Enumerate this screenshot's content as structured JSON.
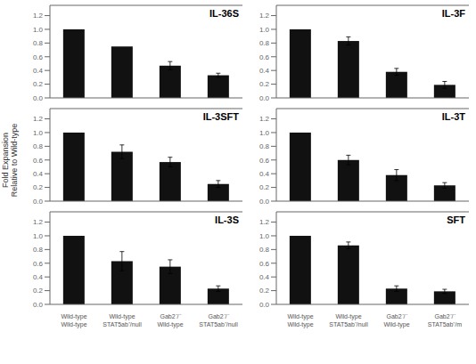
{
  "ylabel": "Fold Expansion\nRelative to Wild-type",
  "chart_data": [
    {
      "type": "bar",
      "title": "IL-36S",
      "categories": [
        null,
        null,
        null,
        null
      ],
      "values": [
        1.0,
        0.75,
        0.47,
        0.33
      ],
      "errors": [
        0.0,
        0.0,
        0.06,
        0.03
      ],
      "color": "#111111",
      "ylim": [
        0,
        1.35
      ],
      "yticks": [
        {
          "value": 0,
          "label": "0.0"
        },
        0.2,
        0.4,
        0.6,
        0.8,
        {
          "value": 1,
          "label": "1.0"
        },
        1.2
      ],
      "tick_labels": "y"
    },
    {
      "type": "bar",
      "title": "IL-3F",
      "categories": [
        null,
        null,
        null,
        null
      ],
      "values": [
        1.0,
        0.83,
        0.38,
        0.19
      ],
      "errors": [
        0.0,
        0.06,
        0.05,
        0.05
      ],
      "color": "#111111",
      "ylim": [
        0,
        1.35
      ],
      "yticks": [
        {
          "value": 0,
          "label": "0.0"
        },
        0.2,
        0.4,
        0.6,
        0.8,
        {
          "value": 1,
          "label": "1.0"
        },
        1.2
      ],
      "tick_labels": "y"
    },
    {
      "type": "bar",
      "title": "IL-3SFT",
      "categories": [
        null,
        null,
        null,
        null
      ],
      "values": [
        1.0,
        0.72,
        0.57,
        0.25
      ],
      "errors": [
        0.0,
        0.1,
        0.07,
        0.05
      ],
      "color": "#111111",
      "ylim": [
        0,
        1.35
      ],
      "yticks": [
        {
          "value": 0,
          "label": "0.0"
        },
        0.2,
        0.4,
        0.6,
        0.8,
        {
          "value": 1,
          "label": "1.0"
        },
        1.2
      ],
      "tick_labels": "y"
    },
    {
      "type": "bar",
      "title": "IL-3T",
      "categories": [
        null,
        null,
        null,
        null
      ],
      "values": [
        1.0,
        0.6,
        0.38,
        0.23
      ],
      "errors": [
        0.0,
        0.07,
        0.08,
        0.04
      ],
      "color": "#111111",
      "ylim": [
        0,
        1.35
      ],
      "yticks": [
        {
          "value": 0,
          "label": "0.0"
        },
        0.2,
        0.4,
        0.6,
        0.8,
        {
          "value": 1,
          "label": "1.0"
        },
        1.2
      ],
      "tick_labels": "y"
    },
    {
      "type": "bar",
      "title": "IL-3S",
      "categories": [
        "Wild-type\nWild-type",
        "Wild-type\nSTAT5ab⁺/null",
        "Gab2⁻/⁻\nWild-type",
        "Gab2⁻/⁻\nSTAT5ab⁺/null"
      ],
      "values": [
        1.0,
        0.63,
        0.55,
        0.23
      ],
      "errors": [
        0.0,
        0.14,
        0.1,
        0.04
      ],
      "color": "#111111",
      "ylim": [
        0,
        1.35
      ],
      "yticks": [
        {
          "value": 0,
          "label": "0.0"
        },
        0.2,
        0.4,
        0.6,
        0.8,
        {
          "value": 1,
          "label": "1.0"
        },
        1.2
      ]
    },
    {
      "type": "bar",
      "title": "SFT",
      "categories": [
        "Wild-type\nWild-type",
        "Wild-type\nSTAT5ab⁺/null",
        "Gab2⁻/⁻\nWild-type",
        "Gab2⁻/⁻\nSTAT5ab⁺/m"
      ],
      "values": [
        1.0,
        0.86,
        0.23,
        0.19
      ],
      "errors": [
        0.0,
        0.05,
        0.04,
        0.03
      ],
      "color": "#111111",
      "ylim": [
        0,
        1.35
      ],
      "yticks": [
        {
          "value": 0,
          "label": "0.0"
        },
        0.2,
        0.4,
        0.6,
        0.8,
        {
          "value": 1,
          "label": "1.0"
        },
        1.2
      ]
    }
  ]
}
